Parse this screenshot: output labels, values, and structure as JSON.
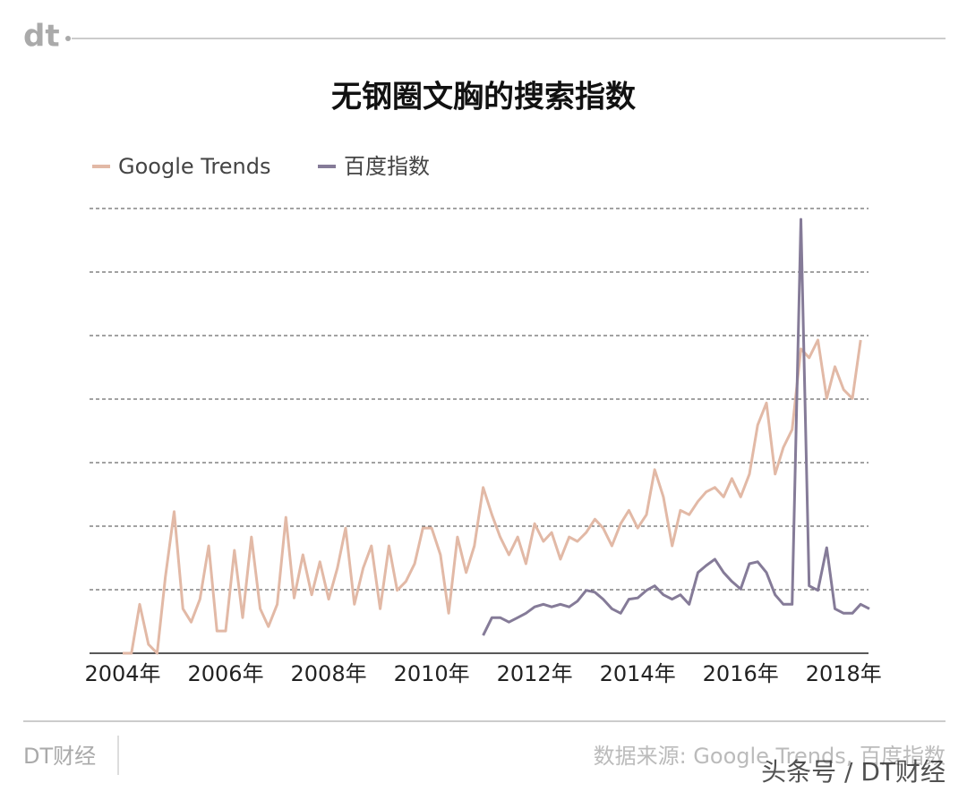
{
  "logo": "dt",
  "chart_data": {
    "type": "line",
    "title": "无钢圈文胸的搜索指数",
    "x": [
      2004.0,
      2004.17,
      2004.33,
      2004.5,
      2004.67,
      2004.83,
      2005.0,
      2005.17,
      2005.33,
      2005.5,
      2005.67,
      2005.83,
      2006.0,
      2006.17,
      2006.33,
      2006.5,
      2006.67,
      2006.83,
      2007.0,
      2007.17,
      2007.33,
      2007.5,
      2007.67,
      2007.83,
      2008.0,
      2008.17,
      2008.33,
      2008.5,
      2008.67,
      2008.83,
      2009.0,
      2009.17,
      2009.33,
      2009.5,
      2009.67,
      2009.83,
      2010.0,
      2010.17,
      2010.33,
      2010.5,
      2010.67,
      2010.83,
      2011.0,
      2011.17,
      2011.33,
      2011.5,
      2011.67,
      2011.83,
      2012.0,
      2012.17,
      2012.33,
      2012.5,
      2012.67,
      2012.83,
      2013.0,
      2013.17,
      2013.33,
      2013.5,
      2013.67,
      2013.83,
      2014.0,
      2014.17,
      2014.33,
      2014.5,
      2014.67,
      2014.83,
      2015.0,
      2015.17,
      2015.33,
      2015.5,
      2015.67,
      2015.83,
      2016.0,
      2016.17,
      2016.33,
      2016.5,
      2016.67,
      2016.83,
      2017.0,
      2017.17,
      2017.33,
      2017.5,
      2017.67,
      2017.83,
      2018.0,
      2018.17,
      2018.33,
      2018.5
    ],
    "series": [
      {
        "name": "Google Trends",
        "color": "#e2b9a6",
        "values": [
          0,
          0,
          0.77,
          0.14,
          0,
          1.2,
          2.23,
          0.7,
          0.49,
          0.85,
          1.69,
          0.35,
          0.35,
          1.62,
          0.56,
          1.83,
          0.7,
          0.42,
          0.77,
          2.14,
          0.87,
          1.55,
          0.92,
          1.44,
          0.85,
          1.34,
          1.97,
          0.77,
          1.34,
          1.69,
          0.7,
          1.69,
          0.99,
          1.13,
          1.41,
          1.97,
          1.97,
          1.55,
          0.63,
          1.83,
          1.27,
          1.69,
          2.61,
          2.18,
          1.83,
          1.55,
          1.83,
          1.41,
          2.04,
          1.76,
          1.9,
          1.48,
          1.83,
          1.76,
          1.9,
          2.11,
          1.97,
          1.69,
          2.04,
          2.25,
          1.97,
          2.18,
          2.89,
          2.46,
          1.69,
          2.25,
          2.18,
          2.39,
          2.54,
          2.61,
          2.46,
          2.75,
          2.46,
          2.82,
          3.59,
          3.94,
          2.82,
          3.24,
          3.52,
          4.79,
          4.65,
          4.93,
          4.01,
          4.51,
          4.15,
          4.01,
          4.93,
          null
        ]
      },
      {
        "name": "百度指数",
        "color": "#857b98",
        "values": [
          null,
          null,
          null,
          null,
          null,
          null,
          null,
          null,
          null,
          null,
          null,
          null,
          null,
          null,
          null,
          null,
          null,
          null,
          null,
          null,
          null,
          null,
          null,
          null,
          null,
          null,
          null,
          null,
          null,
          null,
          null,
          null,
          null,
          null,
          null,
          null,
          null,
          null,
          null,
          null,
          null,
          null,
          0.28,
          0.56,
          0.56,
          0.49,
          0.56,
          0.63,
          0.73,
          0.77,
          0.73,
          0.77,
          0.73,
          0.82,
          0.99,
          0.96,
          0.85,
          0.7,
          0.63,
          0.85,
          0.87,
          0.99,
          1.06,
          0.92,
          0.85,
          0.92,
          0.77,
          1.27,
          1.38,
          1.48,
          1.27,
          1.13,
          1.01,
          1.41,
          1.44,
          1.27,
          0.92,
          0.77,
          0.77,
          6.83,
          1.06,
          0.99,
          1.66,
          0.7,
          0.63,
          0.63,
          0.77,
          0.7
        ]
      }
    ],
    "xlim": [
      2004,
      2018.5
    ],
    "xticks": [
      {
        "value": 2004,
        "label": "2004年"
      },
      {
        "value": 2006,
        "label": "2006年"
      },
      {
        "value": 2008,
        "label": "2008年"
      },
      {
        "value": 2010,
        "label": "2010年"
      },
      {
        "value": 2012,
        "label": "2012年"
      },
      {
        "value": 2014,
        "label": "2014年"
      },
      {
        "value": 2016,
        "label": "2016年"
      },
      {
        "value": 2018,
        "label": "2018年"
      }
    ],
    "ylim": [
      0,
      7
    ],
    "yticks": [
      1,
      2,
      3,
      4,
      5,
      6,
      7
    ],
    "grid": true
  },
  "footer": {
    "brand": "DT财经",
    "source": "数据来源: Google Trends, 百度指数",
    "watermark": "头条号 / DT财经"
  }
}
